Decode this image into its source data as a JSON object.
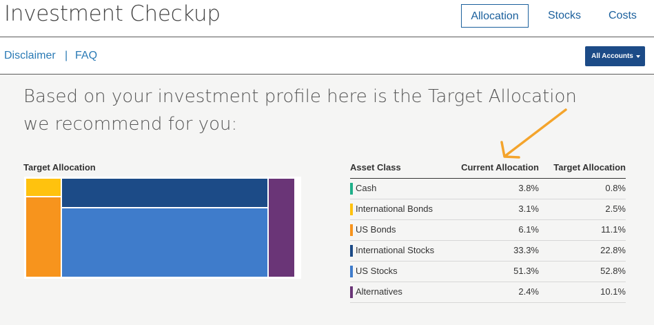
{
  "header": {
    "title": "Investment Checkup",
    "tabs": [
      {
        "label": "Allocation",
        "active": true
      },
      {
        "label": "Stocks",
        "active": false
      },
      {
        "label": "Costs",
        "active": false
      }
    ]
  },
  "subnav": {
    "disclaimer": "Disclaimer",
    "separator": "|",
    "faq": "FAQ",
    "accounts_button": "All Accounts"
  },
  "main": {
    "headline": "Based on your investment profile here is the Target Allocation we recommend for you:",
    "treemap_title": "Target Allocation"
  },
  "table": {
    "headers": {
      "asset_class": "Asset Class",
      "current": "Current Allocation",
      "target": "Target Allocation"
    },
    "rows": [
      {
        "name": "Cash",
        "current": "3.8%",
        "target": "0.8%",
        "color": "#20b08a"
      },
      {
        "name": "International Bonds",
        "current": "3.1%",
        "target": "2.5%",
        "color": "#ffc20e"
      },
      {
        "name": "US Bonds",
        "current": "6.1%",
        "target": "11.1%",
        "color": "#f7941d"
      },
      {
        "name": "International Stocks",
        "current": "33.3%",
        "target": "22.8%",
        "color": "#1c4b87"
      },
      {
        "name": "US Stocks",
        "current": "51.3%",
        "target": "52.8%",
        "color": "#3f7ccb"
      },
      {
        "name": "Alternatives",
        "current": "2.4%",
        "target": "10.1%",
        "color": "#6a3577"
      }
    ]
  },
  "colors": {
    "accent": "#1a5f9c",
    "link": "#2a7ab5",
    "annotation_arrow": "#f4a42c"
  }
}
